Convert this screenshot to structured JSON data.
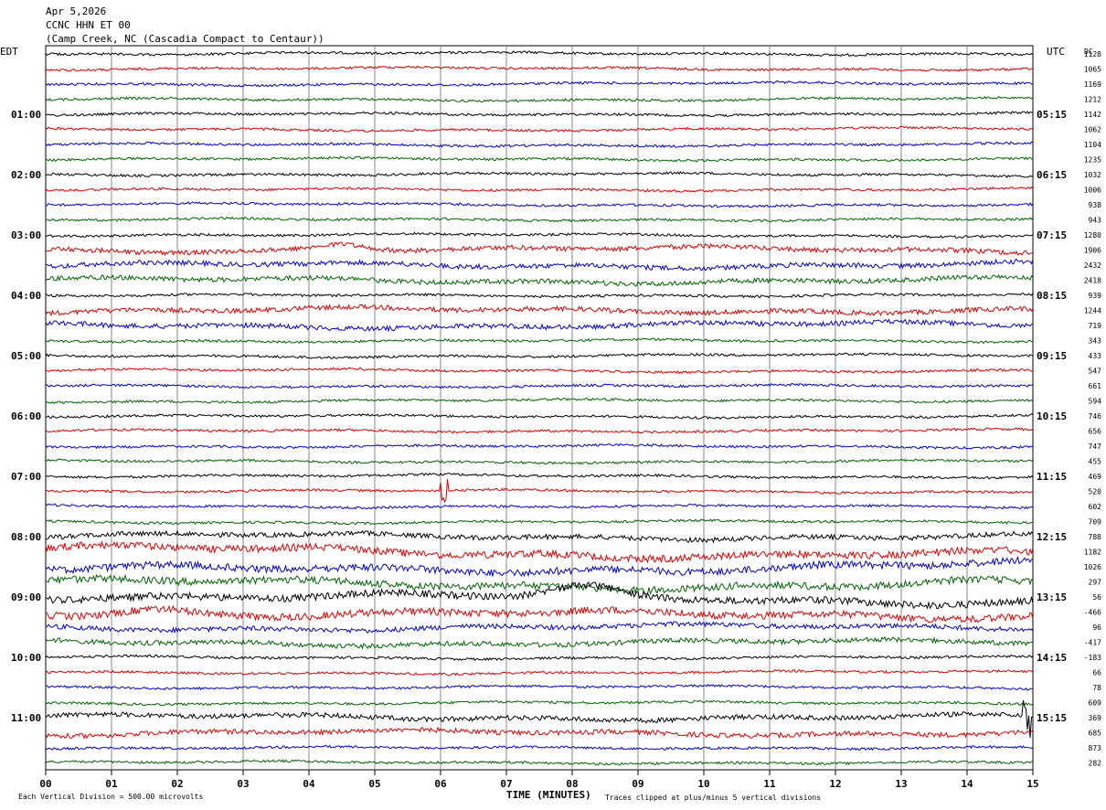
{
  "header": {
    "date": "Apr 5,2026",
    "station": "CCNC HHN ET 00",
    "location": "(Camp Creek, NC (Cascadia Compact to Centaur))"
  },
  "left_timezone": "EDT",
  "right_timezone": "UTC",
  "dc_header": "DC",
  "footer": {
    "scale_note": "Each Vertical Division =  500.00 microvolts",
    "xlabel": "TIME (MINUTES)",
    "clip_note": "Traces clipped at plus/minus 5 vertical divisions"
  },
  "chart_data": {
    "type": "line",
    "title": "CCNC HHN ET 00",
    "xlabel": "TIME (MINUTES)",
    "xlim": [
      0,
      15
    ],
    "x_ticks": [
      "00",
      "01",
      "02",
      "03",
      "04",
      "05",
      "06",
      "07",
      "08",
      "09",
      "10",
      "11",
      "12",
      "13",
      "14",
      "15"
    ],
    "minutes_per_line": 15,
    "line_colors": [
      "#000000",
      "#e00000",
      "#0000d8",
      "#006400"
    ],
    "left_hour_labels": [
      "01:00",
      "02:00",
      "03:00",
      "04:00",
      "05:00",
      "06:00",
      "07:00",
      "08:00",
      "09:00",
      "10:00",
      "11:00"
    ],
    "right_hour_labels": [
      "05:15",
      "06:15",
      "07:15",
      "08:15",
      "09:15",
      "10:15",
      "11:15",
      "12:15",
      "13:15",
      "14:15",
      "15:15"
    ],
    "dc_offsets": [
      "1128",
      "1065",
      "1169",
      "1212",
      "1142",
      "1062",
      "1104",
      "1235",
      "1032",
      "1006",
      "938",
      "943",
      "1280",
      "1906",
      "2432",
      "2418",
      "939",
      "1244",
      "719",
      "343",
      "433",
      "547",
      "661",
      "594",
      "746",
      "656",
      "747",
      "455",
      "469",
      "520",
      "602",
      "709",
      "788",
      "1182",
      "1026",
      "297",
      "56",
      "-466",
      "96",
      "-417",
      "-183",
      "66",
      "78",
      "609",
      "369",
      "685",
      "873",
      "282"
    ],
    "trace_count": 48,
    "trace_activity": [
      1,
      1,
      1,
      1,
      1,
      1,
      1,
      1,
      1,
      1,
      1,
      1,
      1,
      2,
      2,
      2,
      1,
      2,
      2,
      1,
      1,
      1,
      1,
      1,
      1,
      1,
      1,
      1,
      1,
      1,
      1,
      1,
      2,
      3,
      3,
      3,
      3,
      3,
      2,
      2,
      1,
      1,
      1,
      1,
      2,
      2,
      1,
      1
    ],
    "events": [
      {
        "trace": 13,
        "minute": 4.5,
        "amplitude": 2.0,
        "type": "long-period swell"
      },
      {
        "trace": 29,
        "minute": 6.05,
        "amplitude": 1.5,
        "type": "spike"
      },
      {
        "trace": 36,
        "minute": 8.2,
        "amplitude": 2.5,
        "type": "long-period swell"
      },
      {
        "trace": 37,
        "minute": 1.6,
        "amplitude": 1.5,
        "type": "long-period swell"
      },
      {
        "trace": 44,
        "minute": 14.9,
        "amplitude": 3.0,
        "type": "spike"
      }
    ]
  }
}
